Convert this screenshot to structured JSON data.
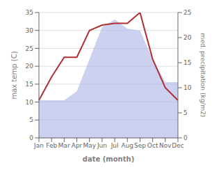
{
  "chart_data": {
    "type": "line",
    "categories": [
      "Jan",
      "Feb",
      "Mar",
      "Apr",
      "May",
      "Jun",
      "Jul",
      "Aug",
      "Sep",
      "Oct",
      "Nov",
      "Dec"
    ],
    "xlabel": "date (month)",
    "ylabel": "max temp (C)",
    "y2label": "med. precipitation (kg/m2)",
    "series": [
      {
        "type": "area",
        "axis": "y2",
        "color": "#b0b8e8",
        "values": [
          7.5,
          7.5,
          7.5,
          9.3,
          15.7,
          22.1,
          23.6,
          21.8,
          21.4,
          15.7,
          11.1,
          11.1
        ]
      },
      {
        "type": "line",
        "color": "#b03030",
        "values": [
          10.5,
          17.0,
          22.5,
          22.5,
          30.0,
          31.5,
          32.0,
          32.0,
          35.0,
          22.0,
          14.0,
          10.5
        ]
      }
    ],
    "ylim": [
      0,
      35
    ],
    "yticks": [
      0,
      5,
      10,
      15,
      20,
      25,
      30,
      35
    ],
    "y2lim": [
      0,
      25
    ],
    "y2ticks": [
      0,
      5,
      10,
      15,
      20,
      25
    ],
    "grid": true
  }
}
